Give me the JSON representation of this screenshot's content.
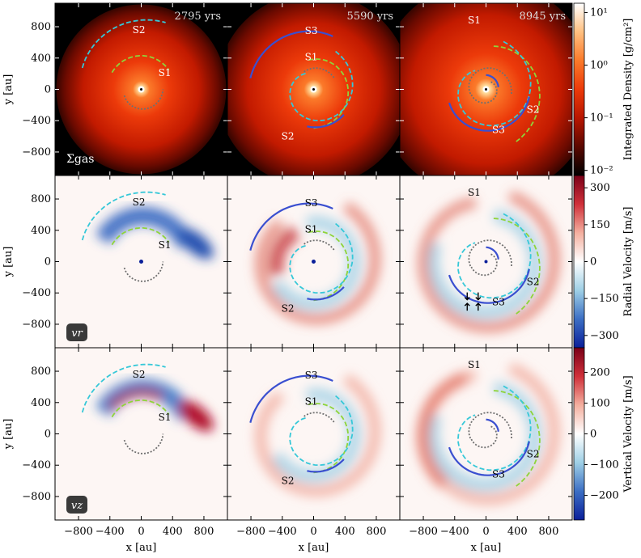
{
  "chart_data": {
    "type": "heatmap",
    "layout": "3x3 panel grid",
    "xlabel": "x [au]",
    "ylabel": "y [au]",
    "xlim": [
      -1100,
      1100
    ],
    "ylim": [
      -1100,
      1100
    ],
    "x_ticks": [
      -800,
      -400,
      0,
      400,
      800
    ],
    "y_ticks": [
      -800,
      -400,
      0,
      400,
      800
    ],
    "x_tick_labels": [
      "−800",
      "−400",
      "0",
      "400",
      "800"
    ],
    "y_tick_labels": [
      "−800",
      "−400",
      "0",
      "400",
      "800"
    ],
    "times": [
      "2795 yrs",
      "5590 yrs",
      "8945 yrs"
    ],
    "rows": [
      {
        "quantity": "Integrated Density",
        "panel_label": "Σgas",
        "colorbar_label": "Integrated Density [g/cm²]",
        "colorbar_scale": "log",
        "colorbar_ticks": [
          0.01,
          0.1,
          1,
          10
        ],
        "colorbar_tick_labels": [
          "10⁻²",
          "10⁻¹",
          "10⁰",
          "10¹"
        ],
        "colormap": [
          "#000000",
          "#5a0800",
          "#b81600",
          "#ec3a0a",
          "#fb7a2a",
          "#ffc080",
          "#ffffff"
        ]
      },
      {
        "quantity": "Radial Velocity",
        "panel_label": "vr",
        "colorbar_label": "Radial Velocity [m/s]",
        "colorbar_range": [
          -350,
          350
        ],
        "colorbar_ticks": [
          -300,
          -150,
          0,
          150,
          300
        ],
        "colorbar_tick_labels": [
          "−300",
          "−150",
          "0",
          "150",
          "300"
        ],
        "colormap": [
          "#0a1f9a",
          "#3c6fc4",
          "#9fd0e6",
          "#ffffff",
          "#f4b0a0",
          "#d0303a",
          "#7a0018"
        ]
      },
      {
        "quantity": "Vertical Velocity",
        "panel_label": "vz",
        "colorbar_label": "Vertical Velocity [m/s]",
        "colorbar_range": [
          -280,
          280
        ],
        "colorbar_ticks": [
          -200,
          -100,
          0,
          100,
          200
        ],
        "colorbar_tick_labels": [
          "−200",
          "−100",
          "0",
          "100",
          "200"
        ],
        "colormap": [
          "#0a1f9a",
          "#3c6fc4",
          "#9fd0e6",
          "#ffffff",
          "#f4b0a0",
          "#d0303a",
          "#7a0018"
        ]
      }
    ],
    "spiral_labels": [
      [
        {
          "text": "S2",
          "x": -30,
          "y": 720
        },
        {
          "text": "S1",
          "x": 300,
          "y": 170
        }
      ],
      [
        {
          "text": "S3",
          "x": -30,
          "y": 710
        },
        {
          "text": "S1",
          "x": -30,
          "y": 370
        },
        {
          "text": "S2",
          "x": -330,
          "y": -640
        }
      ],
      [
        {
          "text": "S1",
          "x": -150,
          "y": 840
        },
        {
          "text": "S2",
          "x": 600,
          "y": -300
        },
        {
          "text": "S3",
          "x": 160,
          "y": -560
        }
      ]
    ],
    "arrows_panel": {
      "row": 1,
      "col": 2,
      "points": [
        [
          -240,
          -440
        ],
        [
          -100,
          -440
        ],
        [
          -240,
          -580
        ],
        [
          -100,
          -580
        ]
      ]
    }
  },
  "colors": {
    "s1": "#8fd43a",
    "s2": "#36c8d8",
    "s3": "#3a4fd0",
    "gray": "#707070",
    "frame": "#000000"
  }
}
